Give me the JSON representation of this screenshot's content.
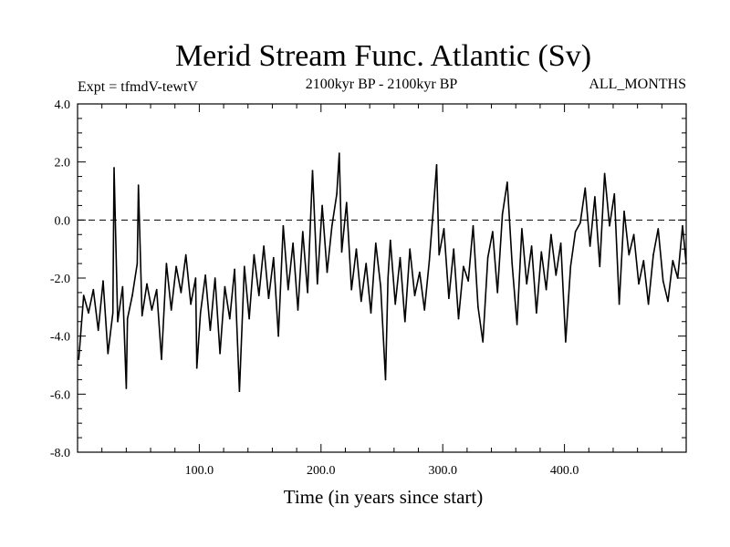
{
  "chart_data": {
    "type": "line",
    "title": "Merid Stream Func. Atlantic (Sv)",
    "subtitle": "2100kyr BP - 2100kyr BP",
    "annotation_left": "Expt = tfmdV-tewtV",
    "annotation_right": "ALL_MONTHS",
    "xlabel": "Time (in years since start)",
    "ylabel": "",
    "xlim": [
      0,
      500
    ],
    "ylim": [
      -8,
      4
    ],
    "x_ticks": [
      100,
      200,
      300,
      400
    ],
    "x_tick_labels": [
      "100.0",
      "200.0",
      "300.0",
      "400.0"
    ],
    "y_ticks": [
      -8,
      -6,
      -4,
      -2,
      0,
      2,
      4
    ],
    "y_tick_labels": [
      "-8.0",
      "-6.0",
      "-4.0",
      "-2.0",
      "0.0",
      "2.0",
      "4.0"
    ],
    "reference_line": {
      "y": 0,
      "style": "dashed"
    },
    "grid": false,
    "x": [
      1,
      5,
      9,
      13,
      17,
      21,
      25,
      29,
      30,
      33,
      37,
      40,
      41,
      45,
      49,
      50,
      53,
      57,
      61,
      65,
      69,
      73,
      77,
      81,
      85,
      89,
      93,
      97,
      98,
      101,
      105,
      109,
      113,
      117,
      121,
      125,
      129,
      133,
      137,
      141,
      145,
      149,
      153,
      157,
      161,
      165,
      169,
      173,
      177,
      181,
      185,
      189,
      193,
      197,
      201,
      205,
      209,
      213,
      215,
      217,
      221,
      225,
      229,
      233,
      237,
      241,
      245,
      249,
      253,
      255,
      257,
      261,
      265,
      269,
      273,
      277,
      281,
      285,
      289,
      293,
      295,
      297,
      301,
      305,
      309,
      313,
      317,
      321,
      325,
      329,
      333,
      337,
      341,
      345,
      349,
      353,
      357,
      361,
      365,
      369,
      373,
      377,
      381,
      385,
      389,
      393,
      397,
      401,
      405,
      409,
      413,
      417,
      421,
      425,
      429,
      433,
      437,
      441,
      445,
      449,
      453,
      457,
      461,
      465,
      469,
      473,
      477,
      481,
      485,
      489,
      493,
      497,
      500
    ],
    "values": [
      -4.8,
      -2.6,
      -3.2,
      -2.4,
      -3.8,
      -2.1,
      -4.6,
      -3.2,
      1.8,
      -3.5,
      -2.3,
      -5.8,
      -3.4,
      -2.6,
      -1.5,
      1.2,
      -3.3,
      -2.2,
      -3.1,
      -2.4,
      -4.8,
      -1.5,
      -3.1,
      -1.6,
      -2.5,
      -1.2,
      -2.9,
      -2.0,
      -5.1,
      -3.2,
      -1.9,
      -3.8,
      -2.0,
      -4.6,
      -2.3,
      -3.4,
      -1.7,
      -5.9,
      -1.6,
      -3.4,
      -1.2,
      -2.6,
      -0.9,
      -2.7,
      -1.3,
      -4.0,
      -0.2,
      -2.4,
      -0.8,
      -3.1,
      -0.4,
      -2.5,
      1.7,
      -2.2,
      0.5,
      -1.8,
      -0.2,
      0.9,
      2.3,
      -1.1,
      0.6,
      -2.4,
      -1.0,
      -2.8,
      -1.5,
      -3.2,
      -0.8,
      -2.3,
      -5.5,
      -2.0,
      -0.7,
      -2.9,
      -1.3,
      -3.5,
      -1.0,
      -2.6,
      -1.8,
      -3.1,
      -1.4,
      0.8,
      1.9,
      -1.2,
      -0.3,
      -2.7,
      -1.0,
      -3.4,
      -1.6,
      -2.1,
      -0.2,
      -3.0,
      -4.2,
      -1.3,
      -0.4,
      -2.5,
      0.2,
      1.3,
      -1.5,
      -3.6,
      -0.3,
      -2.2,
      -0.9,
      -3.2,
      -1.1,
      -2.4,
      -0.5,
      -1.9,
      -0.8,
      -4.2,
      -1.6,
      -0.4,
      -0.1,
      1.1,
      -0.9,
      0.8,
      -1.6,
      1.6,
      -0.2,
      0.9,
      -2.9,
      0.3,
      -1.2,
      -0.5,
      -2.2,
      -1.4,
      -2.9,
      -1.2,
      -0.3,
      -2.1,
      -2.8,
      -1.4,
      -2.0,
      -0.2,
      -1.5
    ]
  }
}
